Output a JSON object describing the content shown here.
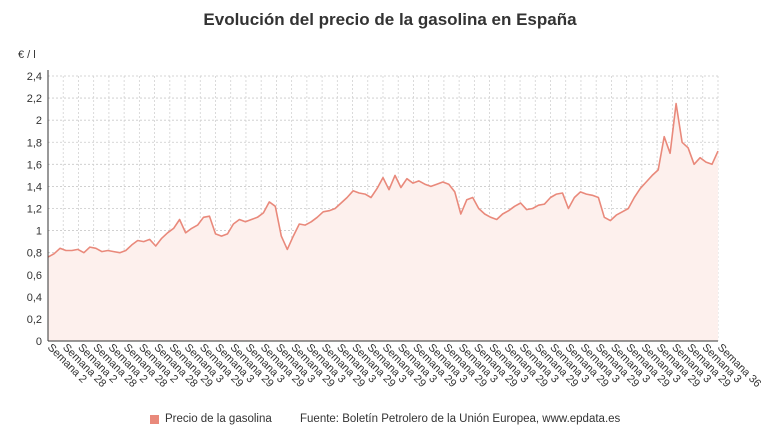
{
  "chart_data": {
    "type": "area",
    "title": "Evolución del precio de la gasolina en España",
    "ylabel": "€ / l",
    "ylim": [
      0,
      2.4
    ],
    "yticks": [
      "0",
      "0,2",
      "0,4",
      "0,6",
      "0,8",
      "1",
      "1,2",
      "1,4",
      "1,6",
      "1,8",
      "2",
      "2,2",
      "2,4"
    ],
    "grid": true,
    "legend_position": "bottom-left",
    "series": [
      {
        "name": "Precio de la gasolina",
        "color": "#e9897b",
        "fill": "#fdf0ed",
        "values": [
          0.76,
          0.79,
          0.84,
          0.82,
          0.82,
          0.83,
          0.8,
          0.85,
          0.84,
          0.81,
          0.82,
          0.81,
          0.8,
          0.82,
          0.87,
          0.91,
          0.9,
          0.92,
          0.86,
          0.93,
          0.98,
          1.02,
          1.1,
          0.98,
          1.02,
          1.05,
          1.12,
          1.13,
          0.97,
          0.95,
          0.97,
          1.06,
          1.1,
          1.08,
          1.1,
          1.12,
          1.16,
          1.26,
          1.22,
          0.95,
          0.83,
          0.95,
          1.06,
          1.05,
          1.08,
          1.12,
          1.17,
          1.18,
          1.2,
          1.25,
          1.3,
          1.36,
          1.34,
          1.33,
          1.3,
          1.38,
          1.48,
          1.37,
          1.5,
          1.39,
          1.47,
          1.43,
          1.45,
          1.42,
          1.4,
          1.42,
          1.44,
          1.42,
          1.35,
          1.15,
          1.28,
          1.3,
          1.2,
          1.15,
          1.12,
          1.1,
          1.15,
          1.18,
          1.22,
          1.25,
          1.19,
          1.2,
          1.23,
          1.24,
          1.3,
          1.33,
          1.34,
          1.2,
          1.3,
          1.35,
          1.33,
          1.32,
          1.3,
          1.12,
          1.09,
          1.14,
          1.17,
          1.2,
          1.3,
          1.38,
          1.44,
          1.5,
          1.55,
          1.85,
          1.7,
          2.15,
          1.8,
          1.75,
          1.6,
          1.66,
          1.62,
          1.6,
          1.72
        ]
      }
    ],
    "x_tick_labels": [
      "Semana 2",
      "Semana 28",
      "Semana 2",
      "Semana 28",
      "Semana 2",
      "Semana 28",
      "Semana 2",
      "Semana 28",
      "Semana 29",
      "Semana 3",
      "Semana 29",
      "Semana 3",
      "Semana 29",
      "Semana 3",
      "Semana 29",
      "Semana 3",
      "Semana 29",
      "Semana 3",
      "Semana 29",
      "Semana 3",
      "Semana 29",
      "Semana 3",
      "Semana 29",
      "Semana 3",
      "Semana 29",
      "Semana 3",
      "Semana 29",
      "Semana 3",
      "Semana 29",
      "Semana 3",
      "Semana 29",
      "Semana 3",
      "Semana 29",
      "Semana 3",
      "Semana 29",
      "Semana 3",
      "Semana 29",
      "Semana 3",
      "Semana 29",
      "Semana 3",
      "Semana 29",
      "Semana 3",
      "Semana 29",
      "Semana 3",
      "Semana 36"
    ]
  },
  "legend": {
    "label": "Precio de la gasolina"
  },
  "source": "Fuente: Boletín Petrolero de la Unión Europea, www.epdata.es"
}
